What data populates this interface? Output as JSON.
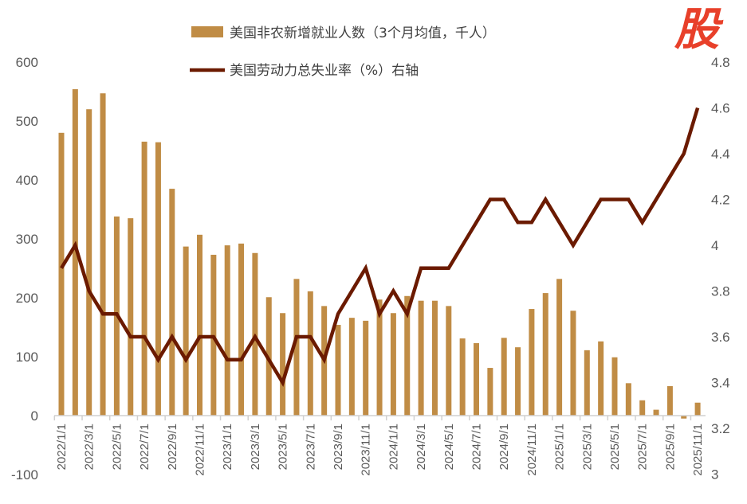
{
  "chart_data": {
    "type": "bar+line",
    "categories": [
      "2022/1/1",
      "2022/2/1",
      "2022/3/1",
      "2022/4/1",
      "2022/5/1",
      "2022/6/1",
      "2022/7/1",
      "2022/8/1",
      "2022/9/1",
      "2022/10/1",
      "2022/11/1",
      "2022/12/1",
      "2023/1/1",
      "2023/2/1",
      "2023/3/1",
      "2023/4/1",
      "2023/5/1",
      "2023/6/1",
      "2023/7/1",
      "2023/8/1",
      "2023/9/1",
      "2023/10/1",
      "2023/11/1",
      "2023/12/1",
      "2024/1/1",
      "2024/2/1",
      "2024/3/1",
      "2024/4/1",
      "2024/5/1",
      "2024/6/1",
      "2024/7/1",
      "2024/8/1",
      "2024/9/1",
      "2024/10/1",
      "2024/11/1",
      "2024/12/1",
      "2025/1/1",
      "2025/2/1",
      "2025/3/1",
      "2025/4/1",
      "2025/5/1",
      "2025/6/1",
      "2025/7/1",
      "2025/8/1",
      "2025/9/1",
      "2025/10/1",
      "2025/11/1"
    ],
    "series": [
      {
        "name": "美国非农新增就业人数（3个月均值，千人）",
        "type": "bar",
        "axis": "left",
        "color": "#c08c45",
        "values": [
          480,
          554,
          520,
          547,
          338,
          335,
          465,
          464,
          385,
          287,
          307,
          273,
          289,
          292,
          276,
          201,
          174,
          232,
          211,
          186,
          154,
          166,
          161,
          197,
          174,
          203,
          195,
          195,
          186,
          131,
          123,
          81,
          132,
          116,
          181,
          208,
          232,
          178,
          111,
          126,
          99,
          55,
          26,
          10,
          50,
          -5,
          22
        ]
      },
      {
        "name": "美国劳动力总失业率（%）右轴",
        "type": "line",
        "axis": "right",
        "color": "#6b1a00",
        "values": [
          3.9,
          4.0,
          3.8,
          3.7,
          3.7,
          3.6,
          3.6,
          3.5,
          3.6,
          3.5,
          3.6,
          3.6,
          3.5,
          3.5,
          3.6,
          3.5,
          3.4,
          3.6,
          3.6,
          3.5,
          3.7,
          3.8,
          3.9,
          3.7,
          3.8,
          3.7,
          3.9,
          3.9,
          3.9,
          4.0,
          4.1,
          4.2,
          4.2,
          4.1,
          4.1,
          4.2,
          4.1,
          4.0,
          4.1,
          4.2,
          4.2,
          4.2,
          4.1,
          4.2,
          4.3,
          4.4,
          4.6
        ]
      }
    ],
    "y_left": {
      "range": [
        -100,
        600
      ],
      "ticks": [
        "-100",
        "0",
        "100",
        "200",
        "300",
        "400",
        "500",
        "600"
      ]
    },
    "y_right": {
      "range": [
        3.0,
        4.8
      ],
      "ticks": [
        "3",
        "3.2",
        "3.4",
        "3.6",
        "3.8",
        "4",
        "4.2",
        "4.4",
        "4.6",
        "4.8"
      ]
    },
    "x_tick_labels": [
      "2022/1/1",
      "2022/3/1",
      "2022/5/1",
      "2022/7/1",
      "2022/9/1",
      "2022/11/1",
      "2023/1/1",
      "2023/3/1",
      "2023/5/1",
      "2023/7/1",
      "2023/9/1",
      "2023/11/1",
      "2024/1/1",
      "2024/3/1",
      "2024/5/1",
      "2024/7/1",
      "2024/9/1",
      "2024/11/1",
      "2025/1/1",
      "2025/3/1",
      "2025/5/1",
      "2025/7/1",
      "2025/9/1",
      "2025/11/1"
    ],
    "grid": false,
    "legend": "top"
  },
  "watermark": "股"
}
